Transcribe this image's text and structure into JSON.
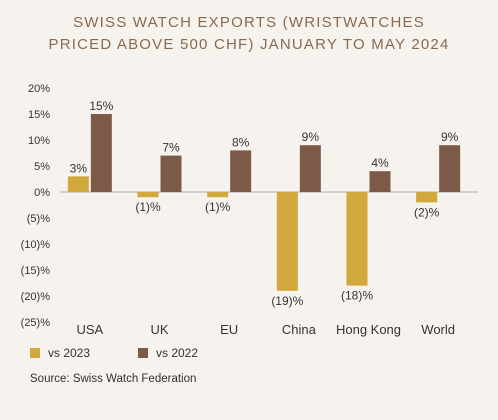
{
  "chart_data": {
    "type": "bar",
    "title_lines": [
      "SWISS WATCH EXPORTS (WRISTWATCHES",
      "PRICED ABOVE 500 CHF) JANUARY TO MAY 2024"
    ],
    "categories": [
      "USA",
      "UK",
      "EU",
      "China",
      "Hong Kong",
      "World"
    ],
    "series": [
      {
        "name": "vs 2023",
        "color": "#d0a83c",
        "values": [
          3,
          -1,
          -1,
          -19,
          -18,
          -2
        ],
        "labels": [
          "3%",
          "(1)%",
          "(1)%",
          "(19)%",
          "(18)%",
          "(2)%"
        ]
      },
      {
        "name": "vs 2022",
        "color": "#7b5a47",
        "values": [
          15,
          7,
          8,
          9,
          4,
          9
        ],
        "labels": [
          "15%",
          "7%",
          "8%",
          "9%",
          "4%",
          "9%"
        ]
      }
    ],
    "ylim": [
      -25,
      20
    ],
    "yticks": [
      20,
      15,
      10,
      5,
      0,
      -5,
      -10,
      -15,
      -20,
      -25
    ],
    "ytick_labels": [
      "20%",
      "15%",
      "10%",
      "5%",
      "0%",
      "(5)%",
      "(10)%",
      "(15)%",
      "(20)%",
      "(25)%"
    ],
    "grid": false,
    "legend_position": "bottom-left"
  },
  "source": "Source: Swiss Watch Federation"
}
